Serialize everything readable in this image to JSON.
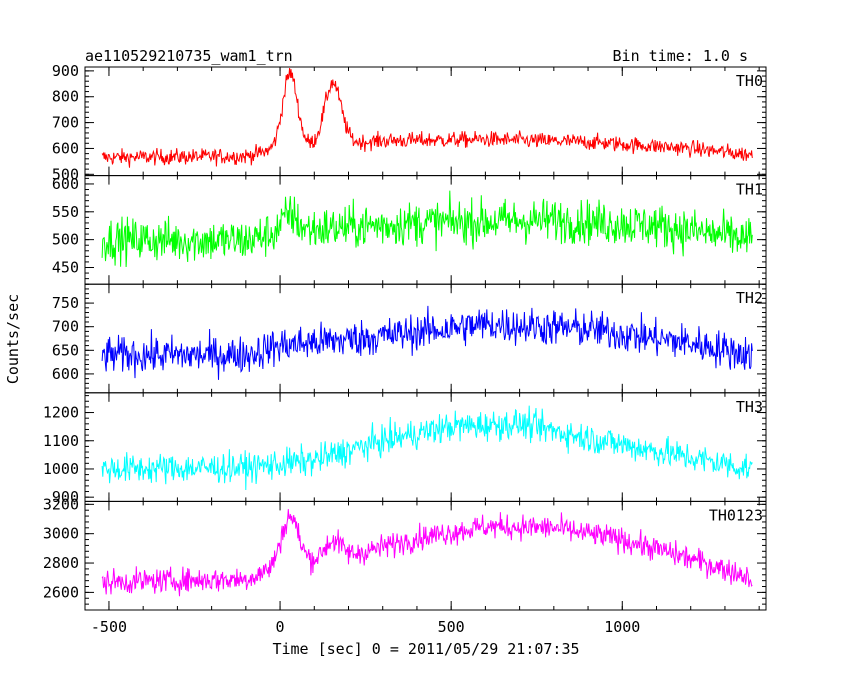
{
  "chart_data": {
    "type": "line",
    "title": "ae110529210735_wam1_trn",
    "bin_time_label": "Bin time: 1.0 s",
    "xlabel": "Time [sec] 0 = 2011/05/29 21:07:35",
    "ylabel": "Counts/sec",
    "xlim": [
      -570,
      1420
    ],
    "x_range": [
      -520,
      1380
    ],
    "x_ticks": [
      -500,
      0,
      500,
      1000
    ],
    "grid": false,
    "panels": [
      {
        "name": "TH0",
        "color": "#ff0000",
        "ylim": [
          495,
          915
        ],
        "y_ticks": [
          500,
          600,
          700,
          800,
          900
        ],
        "baseline": [
          [
            -520,
            565
          ],
          [
            -100,
            570
          ],
          [
            0,
            600
          ],
          [
            300,
            630
          ],
          [
            600,
            635
          ],
          [
            900,
            625
          ],
          [
            1200,
            600
          ],
          [
            1380,
            575
          ]
        ],
        "noise": 22,
        "peaks": [
          {
            "x": 30,
            "height": 290,
            "width": 22
          },
          {
            "x": 155,
            "height": 240,
            "width": 25
          }
        ]
      },
      {
        "name": "TH1",
        "color": "#00ff00",
        "ylim": [
          420,
          615
        ],
        "y_ticks": [
          450,
          500,
          550,
          600
        ],
        "baseline": [
          [
            -520,
            500
          ],
          [
            -100,
            498
          ],
          [
            0,
            515
          ],
          [
            400,
            530
          ],
          [
            800,
            535
          ],
          [
            1100,
            525
          ],
          [
            1380,
            500
          ]
        ],
        "noise": 28,
        "peaks": [
          {
            "x": 30,
            "height": 30,
            "width": 20
          }
        ]
      },
      {
        "name": "TH2",
        "color": "#0000ff",
        "ylim": [
          560,
          790
        ],
        "y_ticks": [
          600,
          650,
          700,
          750
        ],
        "baseline": [
          [
            -520,
            640
          ],
          [
            -100,
            640
          ],
          [
            0,
            660
          ],
          [
            300,
            680
          ],
          [
            600,
            705
          ],
          [
            900,
            695
          ],
          [
            1200,
            665
          ],
          [
            1380,
            640
          ]
        ],
        "noise": 28,
        "peaks": []
      },
      {
        "name": "TH3",
        "color": "#00ffff",
        "ylim": [
          885,
          1270
        ],
        "y_ticks": [
          900,
          1000,
          1100,
          1200
        ],
        "baseline": [
          [
            -520,
            1000
          ],
          [
            -100,
            1005
          ],
          [
            100,
            1030
          ],
          [
            300,
            1100
          ],
          [
            500,
            1150
          ],
          [
            700,
            1160
          ],
          [
            900,
            1110
          ],
          [
            1200,
            1040
          ],
          [
            1380,
            1000
          ]
        ],
        "noise": 38,
        "peaks": []
      },
      {
        "name": "TH0123",
        "color": "#ff00ff",
        "ylim": [
          2480,
          3220
        ],
        "y_ticks": [
          2600,
          2800,
          3000,
          3200
        ],
        "baseline": [
          [
            -520,
            2670
          ],
          [
            -100,
            2690
          ],
          [
            0,
            2780
          ],
          [
            200,
            2850
          ],
          [
            400,
            2970
          ],
          [
            600,
            3050
          ],
          [
            800,
            3040
          ],
          [
            1000,
            2960
          ],
          [
            1200,
            2830
          ],
          [
            1380,
            2700
          ]
        ],
        "noise": 60,
        "peaks": [
          {
            "x": 30,
            "height": 330,
            "width": 25
          },
          {
            "x": 155,
            "height": 120,
            "width": 25
          }
        ]
      }
    ]
  }
}
